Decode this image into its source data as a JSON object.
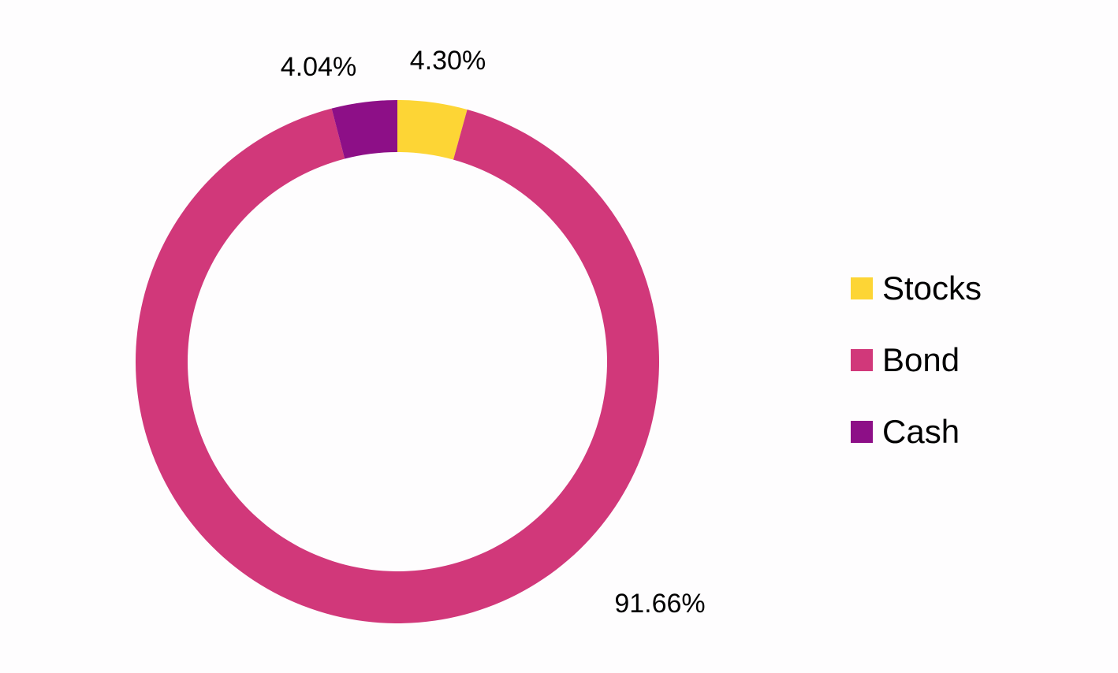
{
  "chart_data": {
    "type": "pie",
    "variant": "donut",
    "title": "",
    "categories": [
      "Stocks",
      "Bond",
      "Cash"
    ],
    "values": [
      4.3,
      91.66,
      4.04
    ],
    "labels": [
      "4.30%",
      "91.66%",
      "4.04%"
    ],
    "colors": [
      "#fdd535",
      "#d1387a",
      "#8d0f87"
    ],
    "legend": {
      "position": "right",
      "entries": [
        "Stocks",
        "Bond",
        "Cash"
      ]
    },
    "start_angle": "12 o'clock",
    "direction": "clockwise"
  }
}
